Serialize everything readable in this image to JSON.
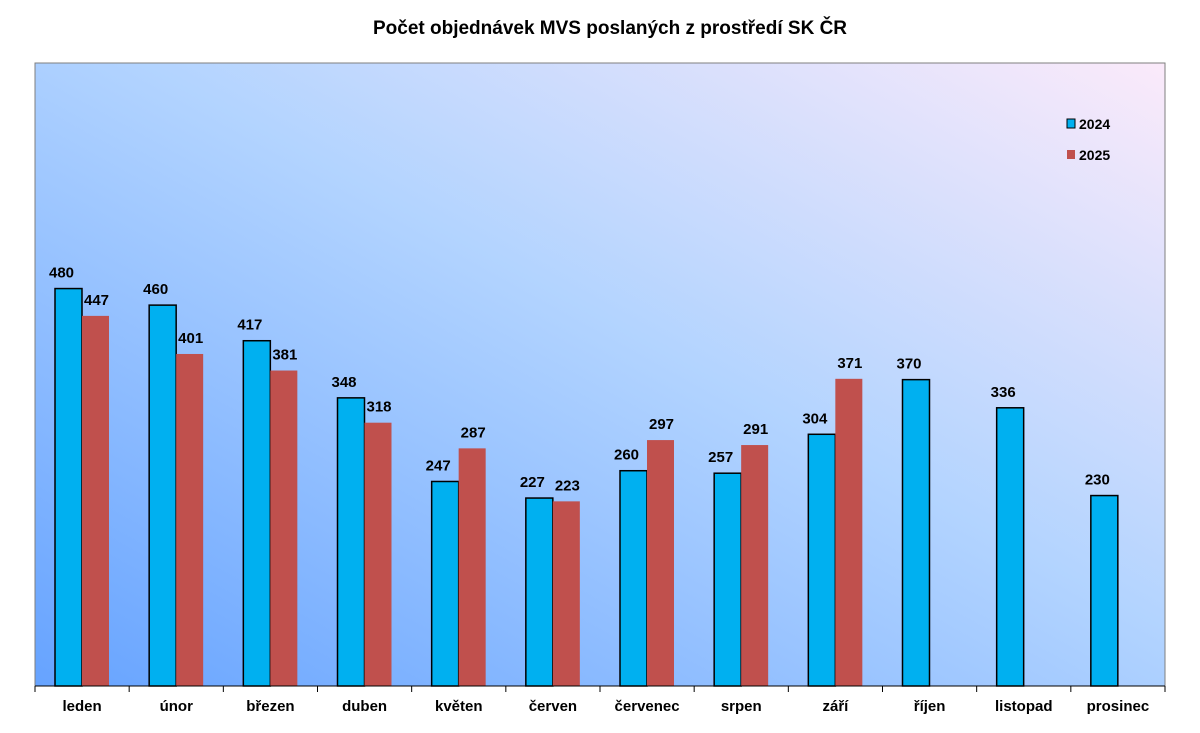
{
  "chart_data": {
    "type": "bar",
    "title": "Počet objednávek MVS poslaných z prostředí SK ČR",
    "xlabel": "",
    "ylabel": "",
    "ylim": [
      0,
      540
    ],
    "grid": false,
    "legend_position": "top-right",
    "categories": [
      "leden",
      "únor",
      "březen",
      "duben",
      "květen",
      "červen",
      "červenec",
      "srpen",
      "září",
      "říjen",
      "listopad",
      "prosinec"
    ],
    "series": [
      {
        "name": "2024",
        "color": "#00b0f0",
        "values": [
          480,
          460,
          417,
          348,
          247,
          227,
          260,
          257,
          304,
          370,
          336,
          230
        ]
      },
      {
        "name": "2025",
        "color": "#c0504d",
        "values": [
          447,
          401,
          381,
          318,
          287,
          223,
          297,
          291,
          371,
          null,
          null,
          null
        ]
      }
    ]
  }
}
